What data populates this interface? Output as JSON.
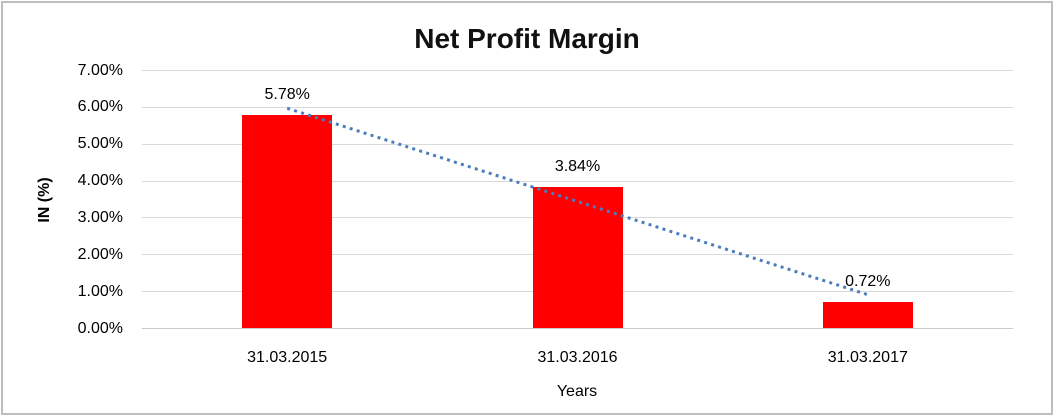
{
  "window": {
    "background": "#ffffff",
    "frame_border_color": "#bdbdbd"
  },
  "chart_data": {
    "type": "bar",
    "title": "Net Profit Margin",
    "xlabel": "Years",
    "ylabel": "IN (%)",
    "categories": [
      "31.03.2015",
      "31.03.2016",
      "31.03.2017"
    ],
    "series": [
      {
        "name": "Net Profit Margin",
        "values": [
          5.78,
          3.84,
          0.72
        ]
      }
    ],
    "value_labels": [
      "5.78%",
      "3.84%",
      "0.72%"
    ],
    "ylim": [
      0,
      7
    ],
    "ytick_step": 1,
    "ytick_labels": [
      "0.00%",
      "1.00%",
      "2.00%",
      "3.00%",
      "4.00%",
      "5.00%",
      "6.00%",
      "7.00%"
    ],
    "grid": true,
    "legend": "none",
    "bar_color": "#ff0000",
    "gridline_color": "#d9d9d9",
    "axis_line_color": "#c9c9c9",
    "text_color": "#000000",
    "trendline": {
      "type": "linear",
      "style": "dotted",
      "color": "#4a7ebb"
    }
  }
}
